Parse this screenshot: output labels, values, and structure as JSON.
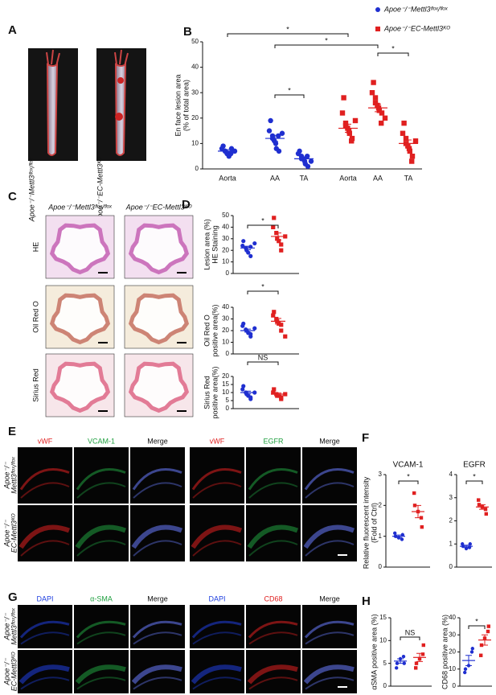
{
  "panel_letters": [
    "A",
    "B",
    "C",
    "D",
    "E",
    "F",
    "G",
    "H"
  ],
  "panel_A": {
    "labels": [
      "Apoe⁻/⁻Mettl3ᶠˡᵒˣ/ᶠˡᵒˣ",
      "Apoe⁻/⁻EC-Mettl3ᴷᴼ"
    ]
  },
  "panel_C": {
    "columns": [
      "Apoe⁻/⁻Mettl3ᶠˡᵒˣ/ᶠˡᵒˣ",
      "Apoe⁻/⁻EC-Mettl3ᴷᴼ"
    ],
    "rows": [
      "HE",
      "Oil Red O",
      "Sirius Red"
    ]
  },
  "panel_E": {
    "columns": [
      "vWF",
      "VCAM-1",
      "Merge",
      "vWF",
      "EGFR",
      "Merge"
    ],
    "rows": [
      [
        "Apoe⁻/⁻",
        "Mettl3ᶠˡᵒˣ/ᶠˡᵒˣ"
      ],
      [
        "Apoe⁻/⁻",
        "EC-Mettl3ᴷᴼ"
      ]
    ]
  },
  "panel_G": {
    "columns": [
      "DAPI",
      "α-SMA",
      "Merge",
      "DAPI",
      "CD68",
      "Merge"
    ],
    "rows": [
      [
        "Apoe⁻/⁻",
        "Mettl3ᶠˡᵒˣ/ᶠˡᵒˣ"
      ],
      [
        "Apoe⁻/⁻",
        "EC-Mettl3ᴷᴼ"
      ]
    ]
  },
  "chart_data": [
    {
      "type": "dot",
      "ylabel": [
        "En face lesion area",
        "(% of total area)"
      ],
      "categories": [
        "Aorta",
        "AA",
        "TA"
      ],
      "ylim": [
        0,
        50
      ],
      "yticks": [
        0,
        10,
        20,
        30,
        40,
        50
      ],
      "legend": "top-right",
      "series": [
        {
          "name": "Apoe⁻/⁻Mettl3ᶠˡᵒˣ/ᶠˡᵒˣ",
          "color": "#1f2fd0",
          "marker": "circle",
          "values": [
            [
              9,
              8,
              7,
              7,
              6,
              6,
              5,
              8,
              6,
              7
            ],
            [
              19,
              15,
              13,
              12,
              11,
              10,
              8,
              7,
              13,
              14
            ],
            [
              7,
              6,
              5,
              4,
              4,
              3,
              2,
              1,
              5,
              3
            ]
          ],
          "means": [
            7,
            12,
            4
          ],
          "sems": [
            0.6,
            1.2,
            0.6
          ]
        },
        {
          "name": "Apoe⁻/⁻EC-Mettl3ᴷᴼ",
          "color": "#e02020",
          "marker": "square",
          "values": [
            [
              28,
              22,
              18,
              17,
              16,
              15,
              14,
              12,
              11,
              19
            ],
            [
              34,
              30,
              28,
              26,
              25,
              24,
              23,
              22,
              18,
              20
            ],
            [
              18,
              14,
              12,
              10,
              9,
              8,
              7,
              5,
              3,
              11
            ]
          ],
          "means": [
            16,
            24,
            10
          ],
          "sems": [
            1.6,
            1.5,
            1.4
          ]
        }
      ],
      "annotations": [
        {
          "text": "*"
        },
        {
          "text": "*"
        },
        {
          "text": "*"
        },
        {
          "text": "*"
        }
      ]
    },
    {
      "type": "dot",
      "ylabel": [
        "Lesion area (%)",
        "HE Staining"
      ],
      "ylim": [
        0,
        50
      ],
      "yticks": [
        0,
        10,
        20,
        30,
        40,
        50
      ],
      "series": [
        {
          "color": "#1f2fd0",
          "marker": "circle",
          "values": [
            [
              28,
              24,
              22,
              20,
              18,
              15,
              23,
              26
            ]
          ],
          "means": [
            22
          ],
          "sems": [
            1.5
          ]
        },
        {
          "color": "#e02020",
          "marker": "square",
          "values": [
            [
              48,
              40,
              35,
              30,
              28,
              25,
              20,
              32
            ]
          ],
          "means": [
            32
          ],
          "sems": [
            3
          ]
        }
      ],
      "annotations": [
        {
          "text": "*"
        }
      ]
    },
    {
      "type": "dot",
      "ylabel": [
        "Oil Red O",
        "positive area(%)"
      ],
      "ylim": [
        0,
        40
      ],
      "yticks": [
        0,
        10,
        20,
        30,
        40
      ],
      "series": [
        {
          "color": "#1f2fd0",
          "marker": "circle",
          "values": [
            [
              26,
              24,
              21,
              20,
              18,
              17,
              15,
              22
            ]
          ],
          "means": [
            20
          ],
          "sems": [
            1.3
          ]
        },
        {
          "color": "#e02020",
          "marker": "square",
          "values": [
            [
              36,
              33,
              30,
              28,
              26,
              25,
              20,
              15
            ]
          ],
          "means": [
            28
          ],
          "sems": [
            2.4
          ]
        }
      ],
      "annotations": [
        {
          "text": "*"
        }
      ]
    },
    {
      "type": "dot",
      "ylabel": [
        "Sirius Red",
        "positive area(%)"
      ],
      "ylim": [
        0,
        20
      ],
      "yticks": [
        0,
        5,
        10,
        15,
        20
      ],
      "series": [
        {
          "color": "#1f2fd0",
          "marker": "circle",
          "values": [
            [
              14,
              12,
              10,
              9,
              8,
              7,
              6,
              10
            ]
          ],
          "means": [
            10
          ],
          "sems": [
            0.9
          ]
        },
        {
          "color": "#e02020",
          "marker": "square",
          "values": [
            [
              12,
              10,
              9,
              8,
              8,
              7,
              6,
              9
            ]
          ],
          "means": [
            9
          ],
          "sems": [
            0.7
          ]
        }
      ],
      "annotations": [
        {
          "text": "NS"
        }
      ]
    },
    {
      "type": "dot",
      "title": "VCAM-1",
      "ylabel": [
        "Relative fluorescent intensity",
        "(Fold of Ctrl)"
      ],
      "ylim": [
        0,
        3
      ],
      "yticks": [
        0,
        1,
        2,
        3
      ],
      "series": [
        {
          "color": "#1f2fd0",
          "marker": "circle",
          "values": [
            [
              1.1,
              1.0,
              0.95,
              0.9,
              1.05
            ]
          ],
          "means": [
            1.0
          ],
          "sems": [
            0.04
          ]
        },
        {
          "color": "#e02020",
          "marker": "square",
          "values": [
            [
              2.4,
              2.0,
              1.8,
              1.6,
              1.3
            ]
          ],
          "means": [
            1.8
          ],
          "sems": [
            0.2
          ]
        }
      ],
      "annotations": [
        {
          "text": "*"
        }
      ]
    },
    {
      "type": "dot",
      "title": "EGFR",
      "ylim": [
        0,
        4
      ],
      "yticks": [
        0,
        1,
        2,
        3,
        4
      ],
      "series": [
        {
          "color": "#1f2fd0",
          "marker": "circle",
          "values": [
            [
              1.0,
              0.9,
              0.8,
              0.85,
              1.0
            ]
          ],
          "means": [
            0.9
          ],
          "sems": [
            0.05
          ]
        },
        {
          "color": "#e02020",
          "marker": "square",
          "values": [
            [
              2.9,
              2.7,
              2.6,
              2.5,
              2.3
            ]
          ],
          "means": [
            2.6
          ],
          "sems": [
            0.1
          ]
        }
      ],
      "annotations": [
        {
          "text": "*"
        }
      ]
    },
    {
      "type": "dot",
      "ylabel": [
        "αSMA positive area (%)"
      ],
      "ylim": [
        0,
        15
      ],
      "yticks": [
        0,
        5,
        10,
        15
      ],
      "series": [
        {
          "color": "#1f2fd0",
          "marker": "circle",
          "values": [
            [
              4,
              5,
              6,
              6.5,
              5
            ]
          ],
          "means": [
            5.5
          ],
          "sems": [
            0.5
          ]
        },
        {
          "color": "#e02020",
          "marker": "square",
          "values": [
            [
              4,
              5,
              6,
              7,
              9
            ]
          ],
          "means": [
            6.3
          ],
          "sems": [
            0.9
          ]
        }
      ],
      "annotations": [
        {
          "text": "NS"
        }
      ]
    },
    {
      "type": "dot",
      "ylabel": [
        "CD68 positive area (%)"
      ],
      "ylim": [
        0,
        40
      ],
      "yticks": [
        0,
        10,
        20,
        30,
        40
      ],
      "series": [
        {
          "color": "#1f2fd0",
          "marker": "circle",
          "values": [
            [
              8,
              10,
              12,
              20,
              22
            ]
          ],
          "means": [
            15
          ],
          "sems": [
            3
          ]
        },
        {
          "color": "#e02020",
          "marker": "square",
          "values": [
            [
              18,
              24,
              28,
              32,
              35
            ]
          ],
          "means": [
            27
          ],
          "sems": [
            3
          ]
        }
      ],
      "annotations": [
        {
          "text": "*"
        }
      ]
    }
  ]
}
